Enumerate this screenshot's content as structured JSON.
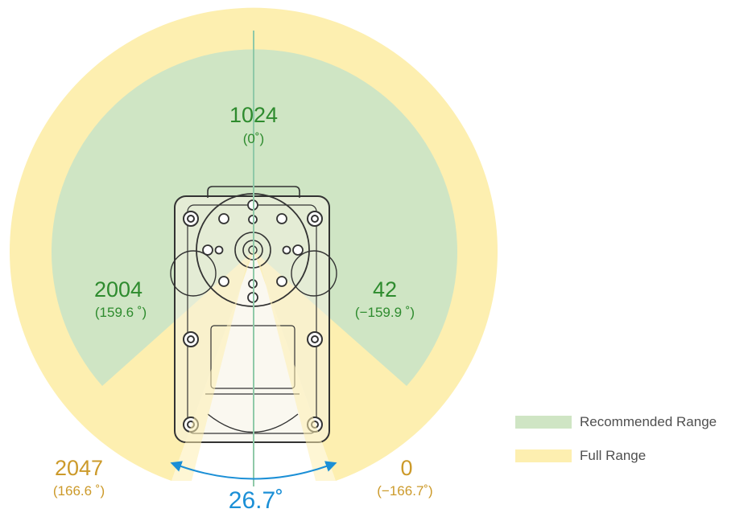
{
  "colors": {
    "full_range": "#fdefb0",
    "recommended_range": "#cfe5c4",
    "green_text": "#2e8b2e",
    "yellow_text": "#cc9a2a",
    "blue": "#1b8fd6",
    "device_stroke": "#333333"
  },
  "labels": {
    "top": {
      "value": "1024",
      "angle": "(0˚)"
    },
    "rec_left": {
      "value": "2004",
      "angle": "(159.6 ˚)"
    },
    "rec_right": {
      "value": "42",
      "angle": "(−159.9 ˚)"
    },
    "full_left": {
      "value": "2047",
      "angle": "(166.6 ˚)"
    },
    "full_right": {
      "value": "0",
      "angle": "(−166.7˚)"
    },
    "dead_zone": "26.7˚"
  },
  "legend": [
    {
      "label": "Recommended Range",
      "color": "#cfe5c4"
    },
    {
      "label": "Full Range",
      "color": "#fdefb0"
    }
  ]
}
